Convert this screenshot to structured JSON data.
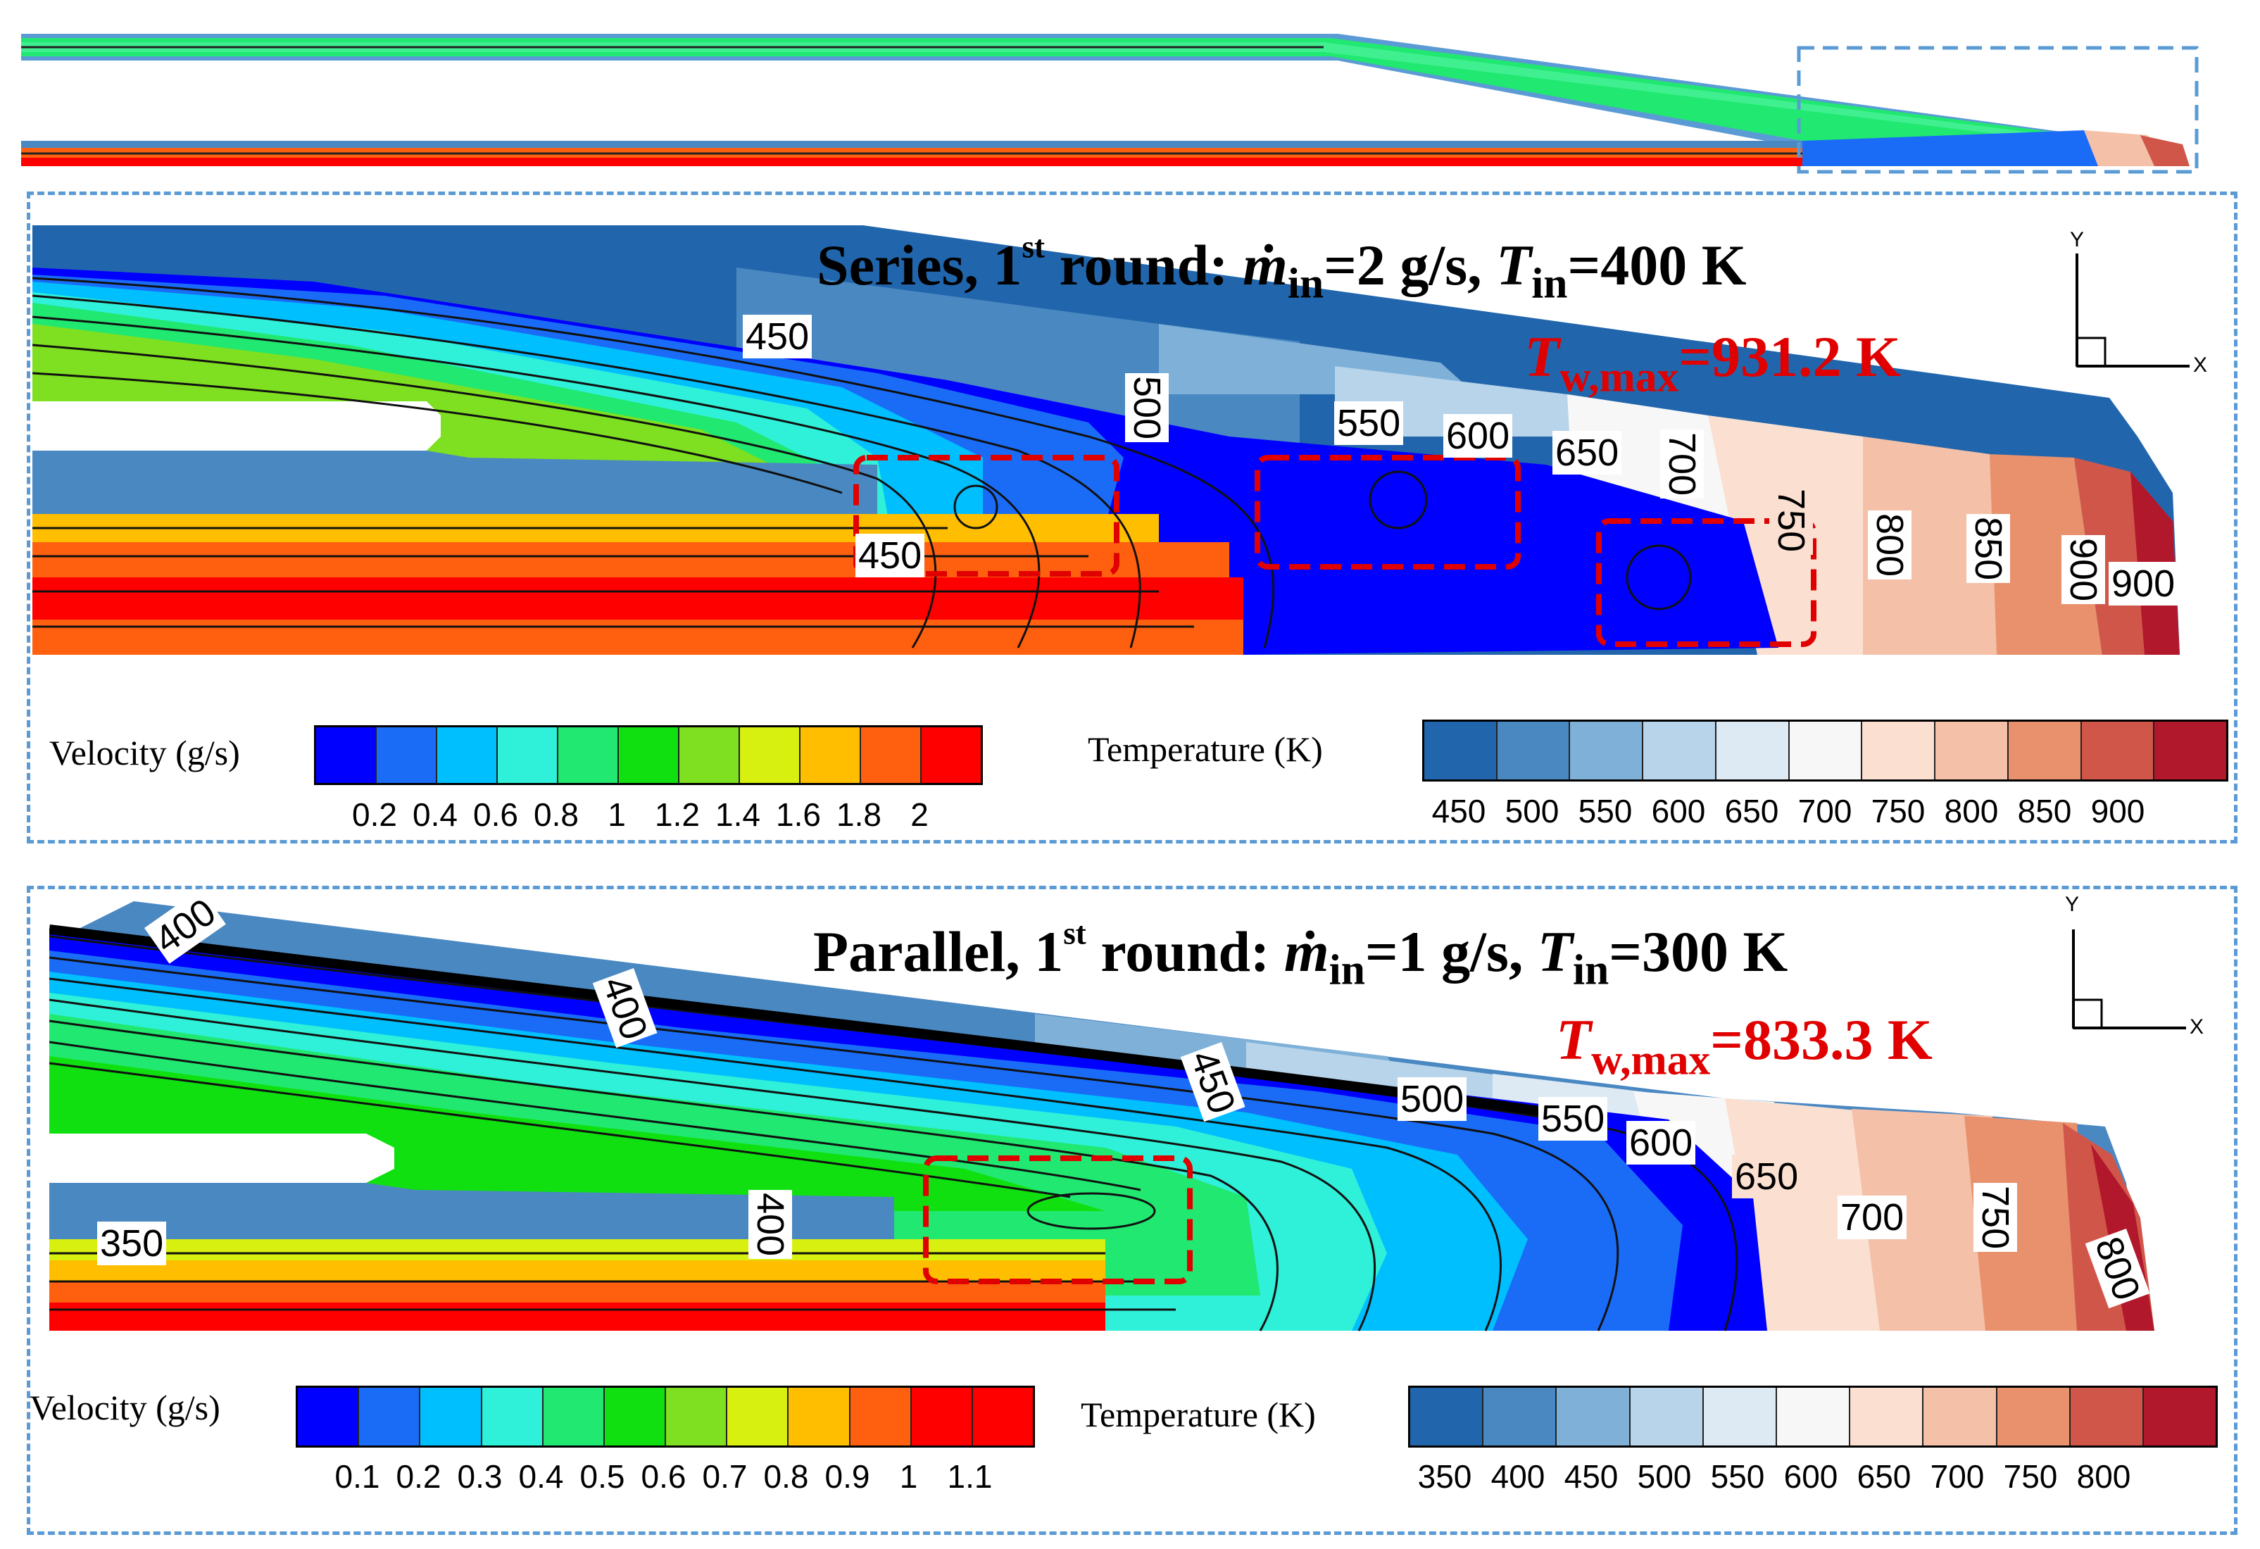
{
  "series_panel": {
    "title_pre": "Series, 1",
    "title_sup": "st",
    "title_mid": " round:  ",
    "m_sym": "ṁ",
    "m_sub": "in",
    "m_val": "=2 g/s,  ",
    "t_sym": "T",
    "t_sub": "in",
    "t_val": "=400 K",
    "tw_sym": "T",
    "tw_sub": "w,max",
    "tw_val": "=931.2 K",
    "contour_labels": [
      "450",
      "500",
      "550",
      "600",
      "650",
      "700",
      "750",
      "800",
      "850",
      "900",
      "900",
      "450"
    ],
    "velocity_label": "Velocity  (g/s)",
    "velocity_ticks": [
      "0.2",
      "0.4",
      "0.6",
      "0.8",
      "1",
      "1.2",
      "1.4",
      "1.6",
      "1.8",
      "2"
    ],
    "temperature_label": "Temperature  (K)",
    "temperature_ticks": [
      "450",
      "500",
      "550",
      "600",
      "650",
      "700",
      "750",
      "800",
      "850",
      "900"
    ],
    "axis_y": "Y",
    "axis_x": "X"
  },
  "parallel_panel": {
    "title_pre": "Parallel, 1",
    "title_sup": "st",
    "title_mid": " round: ",
    "m_sym": "ṁ",
    "m_sub": "in",
    "m_val": "=1 g/s, ",
    "t_sym": "T",
    "t_sub": "in",
    "t_val": "=300 K",
    "tw_sym": "T",
    "tw_sub": "w,max",
    "tw_val": "=833.3 K",
    "contour_labels": [
      "400",
      "400",
      "450",
      "500",
      "550",
      "600",
      "650",
      "700",
      "750",
      "800",
      "400",
      "350"
    ],
    "velocity_label": "Velocity  (g/s)",
    "velocity_ticks": [
      "0.1",
      "0.2",
      "0.3",
      "0.4",
      "0.5",
      "0.6",
      "0.7",
      "0.8",
      "0.9",
      "1",
      "1.1"
    ],
    "temperature_label": "Temperature  (K)",
    "temperature_ticks": [
      "350",
      "400",
      "450",
      "500",
      "550",
      "600",
      "650",
      "700",
      "750",
      "800"
    ],
    "axis_y": "Y",
    "axis_x": "X"
  },
  "colors": {
    "velocity": [
      "#0000ff",
      "#1a6cf7",
      "#00bfff",
      "#2ff0d8",
      "#20e870",
      "#10e010",
      "#7ee020",
      "#d8f010",
      "#ffbf00",
      "#ff6010",
      "#ff0000"
    ],
    "temperature": [
      "#2166ac",
      "#4a88c2",
      "#7fb1d8",
      "#b8d4ea",
      "#dde9f3",
      "#f7f7f7",
      "#fbe0d2",
      "#f4c0a8",
      "#e8916c",
      "#d0564a",
      "#b2182b"
    ],
    "highlight": "#e00000",
    "frame": "#5b9bd5"
  }
}
